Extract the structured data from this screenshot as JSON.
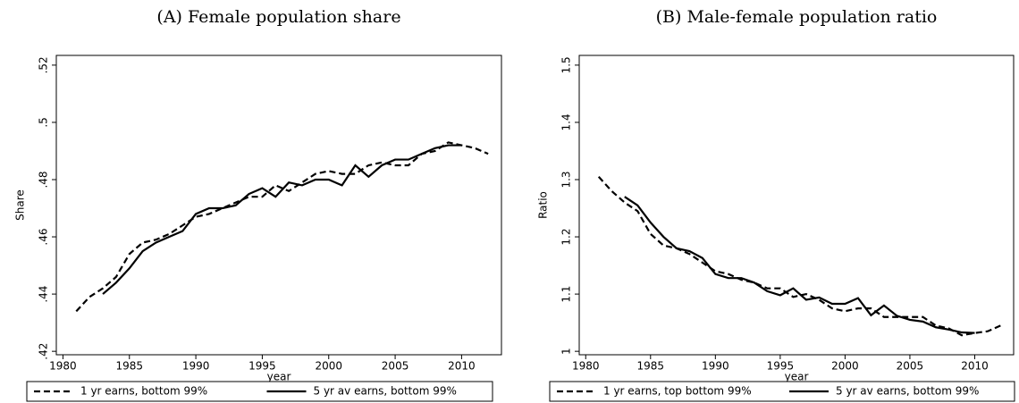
{
  "chart_data": [
    {
      "type": "line",
      "title": "(A) Female population share",
      "x_label": "year",
      "y_label": "Share",
      "x": [
        1981,
        1982,
        1983,
        1984,
        1985,
        1986,
        1987,
        1988,
        1989,
        1990,
        1991,
        1992,
        1993,
        1994,
        1995,
        1996,
        1997,
        1998,
        1999,
        2000,
        2001,
        2002,
        2003,
        2004,
        2005,
        2006,
        2007,
        2008,
        2009,
        2010,
        2011,
        2012
      ],
      "xlim": [
        1979.5,
        2013
      ],
      "xticks": [
        1980,
        1985,
        1990,
        1995,
        2000,
        2005,
        2010
      ],
      "ylim": [
        0.4188,
        0.5234
      ],
      "yticks": [
        {
          "value": 0.42,
          "label": ".42"
        },
        {
          "value": 0.44,
          "label": ".44"
        },
        {
          "value": 0.46,
          "label": ".46"
        },
        {
          "value": 0.48,
          "label": ".48"
        },
        {
          "value": 0.5,
          "label": ".5"
        },
        {
          "value": 0.52,
          "label": ".52"
        }
      ],
      "series": [
        {
          "name": "1 yr earns, bottom 99%",
          "color": "#000000",
          "dash": true,
          "values": [
            0.434,
            0.439,
            0.442,
            0.446,
            0.454,
            0.458,
            0.459,
            0.461,
            0.464,
            0.467,
            0.468,
            0.47,
            0.472,
            0.474,
            0.474,
            0.478,
            0.476,
            0.479,
            0.482,
            0.483,
            0.482,
            0.482,
            0.485,
            0.486,
            0.485,
            0.485,
            0.489,
            0.49,
            0.493,
            0.492,
            0.491,
            0.489
          ]
        },
        {
          "name": "5 yr av earns, bottom 99%",
          "color": "#000000",
          "dash": false,
          "values": [
            null,
            null,
            0.44,
            0.444,
            0.449,
            0.455,
            0.458,
            0.46,
            0.462,
            0.468,
            0.47,
            0.47,
            0.471,
            0.475,
            0.477,
            0.474,
            0.479,
            0.478,
            0.48,
            0.48,
            0.478,
            0.485,
            0.481,
            0.485,
            0.487,
            0.487,
            0.489,
            0.491,
            0.492,
            0.492,
            null,
            null
          ]
        }
      ]
    },
    {
      "type": "line",
      "title": "(B) Male-female population ratio",
      "x_label": "year",
      "y_label": "Ratio",
      "x": [
        1981,
        1982,
        1983,
        1984,
        1985,
        1986,
        1987,
        1988,
        1989,
        1990,
        1991,
        1992,
        1993,
        1994,
        1995,
        1996,
        1997,
        1998,
        1999,
        2000,
        2001,
        2002,
        2003,
        2004,
        2005,
        2006,
        2007,
        2008,
        2009,
        2010,
        2011,
        2012
      ],
      "xlim": [
        1979.5,
        2013
      ],
      "xticks": [
        1980,
        1985,
        1990,
        1995,
        2000,
        2005,
        2010
      ],
      "ylim": [
        0.994,
        1.517
      ],
      "yticks": [
        1,
        1.1,
        1.2,
        1.3,
        1.4,
        1.5
      ],
      "series": [
        {
          "name": "1 yr earns, top bottom 99%",
          "color": "#000000",
          "dash": true,
          "values": [
            1.305,
            1.28,
            1.26,
            1.245,
            1.205,
            1.185,
            1.18,
            1.17,
            1.155,
            1.14,
            1.135,
            1.125,
            1.12,
            1.11,
            1.11,
            1.095,
            1.1,
            1.09,
            1.075,
            1.07,
            1.075,
            1.075,
            1.06,
            1.06,
            1.06,
            1.06,
            1.045,
            1.04,
            1.028,
            1.032,
            1.035,
            1.045
          ]
        },
        {
          "name": "5 yr av earns, bottom 99%",
          "color": "#000000",
          "dash": false,
          "values": [
            null,
            null,
            1.27,
            1.255,
            1.225,
            1.2,
            1.18,
            1.175,
            1.163,
            1.135,
            1.128,
            1.128,
            1.12,
            1.105,
            1.098,
            1.11,
            1.09,
            1.094,
            1.083,
            1.083,
            1.093,
            1.063,
            1.08,
            1.062,
            1.055,
            1.052,
            1.042,
            1.038,
            1.033,
            1.032,
            null,
            null
          ]
        }
      ]
    }
  ]
}
